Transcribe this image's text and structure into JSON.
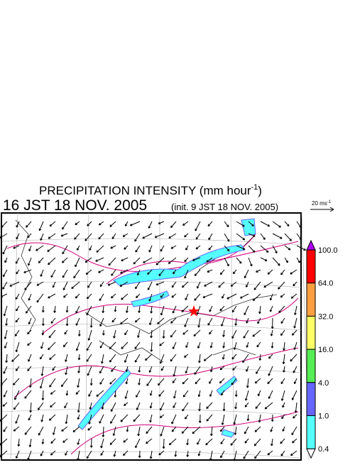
{
  "header": {
    "title": {
      "main": "PRECIPITATION INTENSITY (mm hour",
      "sup": "-1",
      "end": ")"
    },
    "valid_time": "16 JST 18 NOV. 2005",
    "init_time": "(init. 9 JST 18 NOV. 2005)"
  },
  "wind_scale": {
    "main": "20 ms",
    "sup": "-1"
  },
  "colorbar": {
    "top_color": "#b000ff",
    "bottom_color": "#ffffff",
    "colors": [
      "#ff0000",
      "#ffa040",
      "#ffff66",
      "#55ee55",
      "#6666ff",
      "#55ffff"
    ],
    "labels": [
      "100.0",
      "64.0",
      "32.0",
      "16.0",
      "4.0",
      "1.0",
      "0.4"
    ]
  }
}
